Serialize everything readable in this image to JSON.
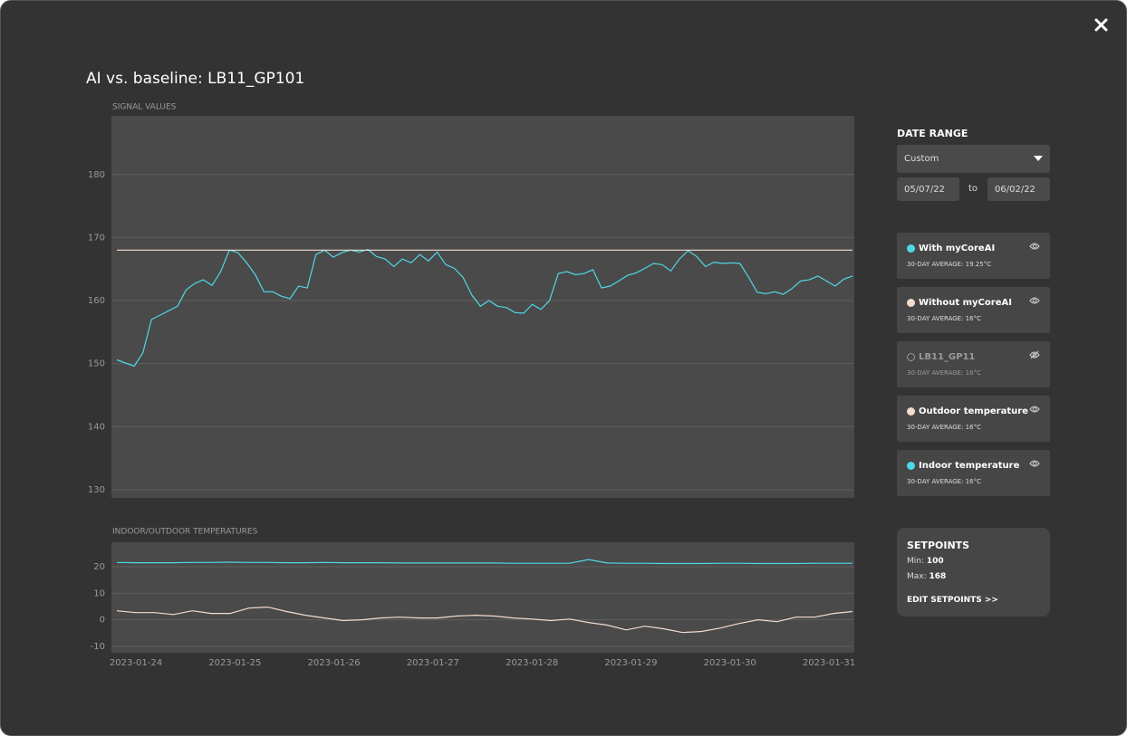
{
  "title": "AI vs. baseline: LB11_GP101",
  "chart_data": [
    {
      "type": "line",
      "title": "SIGNAL VALUES",
      "ylim": [
        128.7,
        189.3
      ],
      "yticks": [
        130,
        140,
        150,
        160,
        170,
        180
      ],
      "grid": true,
      "series": [
        {
          "color": "#4fd8e6",
          "values": [
            150.6,
            150.1,
            149.6,
            151.7,
            157,
            157.7,
            158.4,
            159.1,
            161.7,
            162.7,
            163.3,
            162.4,
            164.6,
            168,
            167.6,
            166,
            164.1,
            161.4,
            161.4,
            160.7,
            160.3,
            162.3,
            162,
            167.3,
            168,
            166.9,
            167.6,
            168,
            167.7,
            168.1,
            167,
            166.6,
            165.4,
            166.6,
            166,
            167.3,
            166.3,
            167.7,
            165.7,
            165.1,
            163.7,
            160.9,
            159.1,
            160,
            159.1,
            158.9,
            158.1,
            158,
            159.4,
            158.6,
            160,
            164.3,
            164.6,
            164.1,
            164.3,
            164.9,
            162,
            162.3,
            163.1,
            164,
            164.4,
            165.1,
            165.9,
            165.7,
            164.7,
            166.6,
            167.9,
            167,
            165.4,
            166.1,
            165.9,
            166,
            165.9,
            163.7,
            161.3,
            161.1,
            161.4,
            161,
            161.9,
            163.1,
            163.3,
            163.9,
            163.1,
            162.3,
            163.4,
            163.9
          ]
        },
        {
          "color": "#f3dccf",
          "values": [
            168,
            168
          ]
        }
      ]
    },
    {
      "type": "line",
      "title": "INDOOR/OUTDOOR TEMPERATURES",
      "ylim": [
        -12.4,
        29.2
      ],
      "yticks": [
        -10,
        0,
        10,
        20
      ],
      "grid": true,
      "xticks": [
        "2023-01-24",
        "2023-01-25",
        "2023-01-26",
        "2023-01-27",
        "2023-01-28",
        "2023-01-29",
        "2023-01-30",
        "2023-01-31"
      ],
      "series": [
        {
          "color": "#4fd8e6",
          "values": [
            21.6,
            21.5,
            21.5,
            21.5,
            21.6,
            21.6,
            21.7,
            21.6,
            21.6,
            21.5,
            21.5,
            21.6,
            21.5,
            21.5,
            21.5,
            21.4,
            21.4,
            21.4,
            21.4,
            21.4,
            21.4,
            21.3,
            21.3,
            21.3,
            21.3,
            22.7,
            21.4,
            21.3,
            21.3,
            21.2,
            21.2,
            21.2,
            21.3,
            21.3,
            21.2,
            21.2,
            21.2,
            21.3,
            21.3,
            21.3
          ]
        },
        {
          "color": "#f3dccf",
          "values": [
            3.4,
            2.7,
            2.7,
            2,
            3.4,
            2.4,
            2.4,
            4.4,
            4.8,
            3.1,
            1.7,
            0.7,
            -0.3,
            0,
            0.7,
            1,
            0.7,
            0.7,
            1.4,
            1.7,
            1.4,
            0.7,
            0.3,
            -0.3,
            0.3,
            -1,
            -2,
            -3.8,
            -2.4,
            -3.4,
            -4.8,
            -4.4,
            -3.1,
            -1.4,
            0,
            -0.7,
            1,
            1,
            2.4,
            3.1
          ]
        }
      ]
    }
  ],
  "date_range": {
    "title": "DATE RANGE",
    "preset": "Custom",
    "from": "05/07/22",
    "separator": "to",
    "to": "06/02/22"
  },
  "legend": [
    {
      "label": "With myCoreAI",
      "average": "30-DAY AVERAGE: 19.25°C",
      "color": "#4fd8e6",
      "visible": true
    },
    {
      "label": "Without myCoreAI",
      "average": "30-DAY AVERAGE: 16°C",
      "color": "#f3dccf",
      "visible": true
    },
    {
      "label": "LB11_GP11",
      "average": "30-DAY AVERAGE: 16°C",
      "color": "#9a9a9a",
      "visible": false
    },
    {
      "label": "Outdoor temperature",
      "average": "30-DAY AVERAGE: 16°C",
      "color": "#f3dccf",
      "visible": true
    },
    {
      "label": "Indoor temperature",
      "average": "30-DAY AVERAGE: 16°C",
      "color": "#4fd8e6",
      "visible": true
    }
  ],
  "setpoints": {
    "title": "SETPOINTS",
    "min_label": "Min:",
    "min": 100,
    "max_label": "Max:",
    "max": 168,
    "link": "EDIT SETPOINTS >>"
  }
}
